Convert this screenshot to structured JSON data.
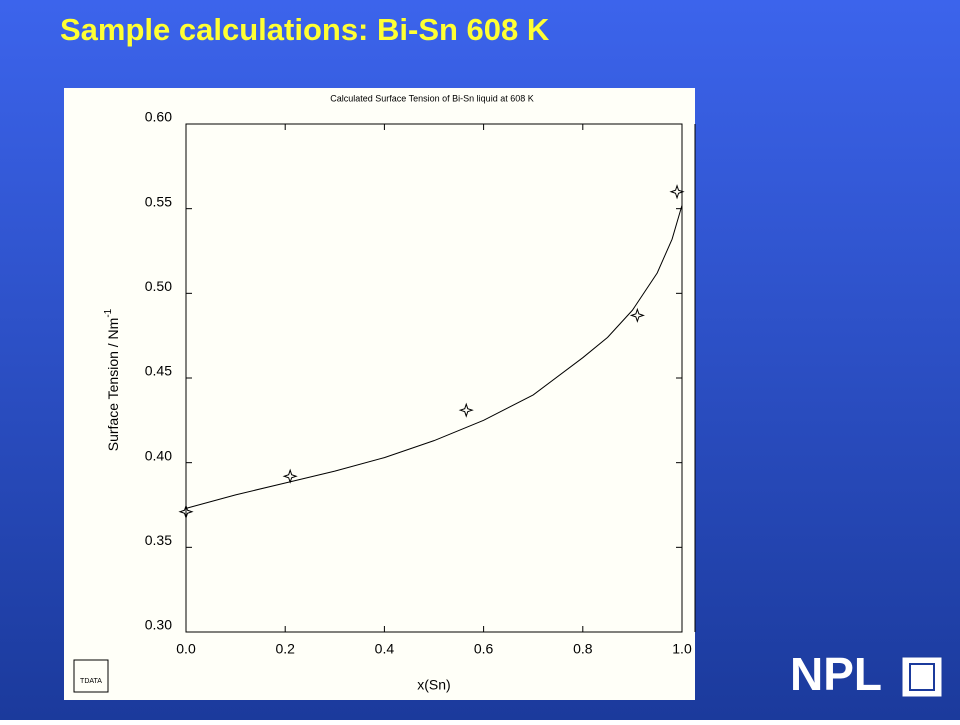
{
  "slide_title": "Sample calculations:  Bi-Sn 608 K",
  "logo": "NPL",
  "corner_logo": "TDATA",
  "chart_data": {
    "type": "line",
    "title": "Calculated Surface Tension of Bi-Sn liquid at 608 K",
    "x_label": "x(Sn)",
    "y_label": "Surface Tension / Nm",
    "y_label_sup": "-1",
    "xlim": [
      0,
      1
    ],
    "ylim": [
      0.3,
      0.6
    ],
    "xticks": [
      {
        "value": 0,
        "label": "0.0"
      },
      0.2,
      0.4,
      0.6,
      0.8,
      {
        "value": 1,
        "label": "1.0"
      }
    ],
    "yticks": [
      {
        "value": 0.3,
        "label": "0.30"
      },
      0.35,
      {
        "value": 0.4,
        "label": "0.40"
      },
      0.45,
      {
        "value": 0.5,
        "label": "0.50"
      },
      0.55,
      {
        "value": 0.6,
        "label": "0.60"
      }
    ],
    "series": [
      {
        "color": "#000000",
        "line": true,
        "x": [
          0,
          0.1,
          0.2,
          0.3,
          0.4,
          0.5,
          0.6,
          0.7,
          0.8,
          0.85,
          0.9,
          0.95,
          0.98,
          1.0
        ],
        "values": [
          0.373,
          0.381,
          0.388,
          0.395,
          0.403,
          0.413,
          0.425,
          0.44,
          0.462,
          0.474,
          0.49,
          0.512,
          0.532,
          0.552
        ]
      },
      {
        "color": "#000000",
        "marker": "star",
        "x": [
          0.0,
          0.21,
          0.565,
          0.91,
          0.99
        ],
        "values": [
          0.371,
          0.392,
          0.431,
          0.487,
          0.56
        ]
      }
    ]
  }
}
